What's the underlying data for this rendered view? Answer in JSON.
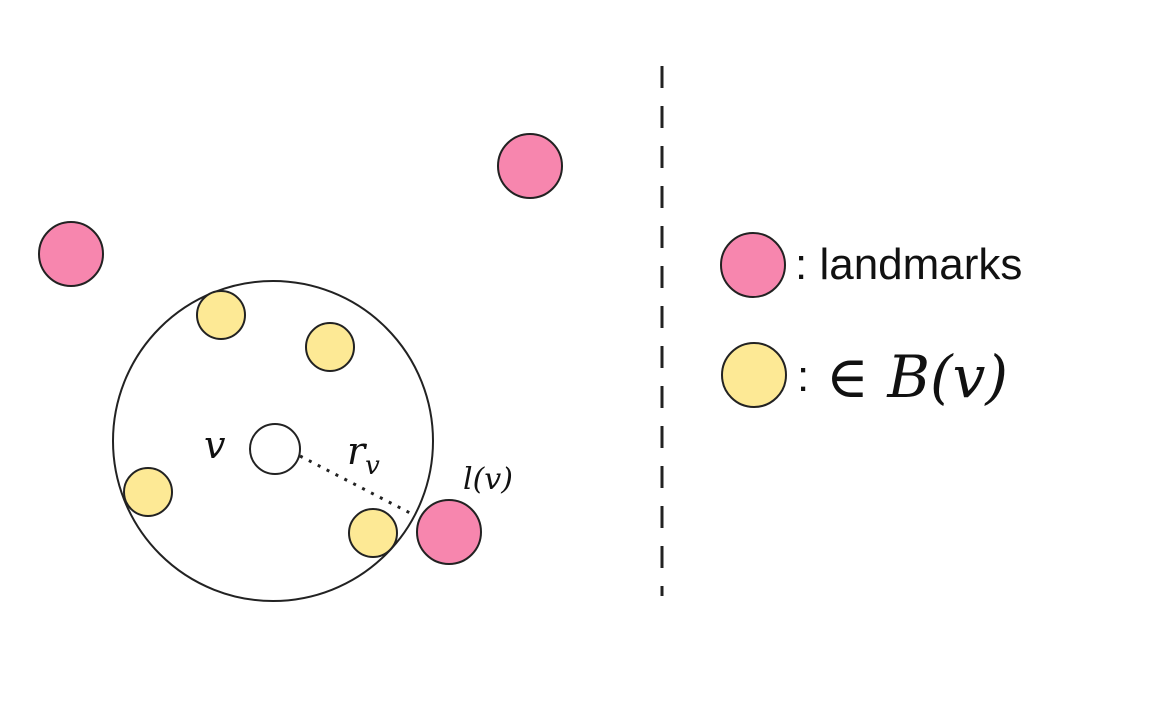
{
  "colors": {
    "landmark_fill": "#f786ae",
    "ball_member_fill": "#fde995",
    "stroke": "#222222",
    "background": "#ffffff"
  },
  "labels": {
    "v": "v",
    "r_main": "r",
    "r_sub": "v",
    "l_of_v": "l(v)"
  },
  "legend": {
    "landmarks_text": ": landmarks",
    "ball_text_colon": ":",
    "ball_text_math": "∈ B(v)"
  }
}
